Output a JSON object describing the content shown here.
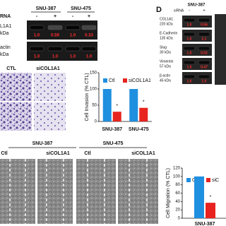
{
  "panel_a": {
    "cell_lines": [
      "SNU-387",
      "SNU-475"
    ],
    "sirna_label": "RNA",
    "sirna_states": [
      "-",
      "+",
      "-",
      "+"
    ],
    "rows": [
      {
        "label": "L1A1",
        "kda": "kDa",
        "ratios": [
          "1.0",
          "0.59",
          "1.0",
          "0.33"
        ]
      },
      {
        "label": "actin",
        "kda": "kDa",
        "ratios": [
          "1.0",
          "1.0",
          "1.0",
          "1.0"
        ]
      }
    ]
  },
  "panel_d": {
    "letter": "D",
    "cell_line": "SNU-387",
    "sirna_label": "siRNA",
    "sirna_states": [
      "-",
      "+"
    ],
    "rows": [
      {
        "label": "COL1A1",
        "kda": "220 kDa",
        "ratios": [
          "1.0",
          "0.56"
        ]
      },
      {
        "label": "E-Cadherin",
        "kda": "135 kDa",
        "ratios": [
          "1.0",
          "2.1"
        ]
      },
      {
        "label": "Slug",
        "kda": "30 kDa",
        "ratios": [
          "1.0",
          "0.52"
        ]
      },
      {
        "label": "Vimentin",
        "kda": "57 kDa",
        "ratios": [
          "1.0",
          "0.47"
        ]
      },
      {
        "label": "β-actin",
        "kda": "45 kDa",
        "ratios": [
          "1.0",
          "1.0"
        ]
      }
    ]
  },
  "invasion_images": {
    "labels": [
      "CTL",
      "siCOL1A1"
    ]
  },
  "migration_images": {
    "groups": [
      {
        "title": "SNU-387",
        "labels": [
          "Ctl",
          "siCOL1A1"
        ]
      },
      {
        "title": "SNU-475",
        "labels": [
          "Ctl",
          "siCOL1A1"
        ]
      }
    ]
  },
  "chart_data": [
    {
      "type": "bar",
      "y_label": "Cell Invasion (% CTL)",
      "categories": [
        "SNU-387",
        "SNU-475"
      ],
      "series": [
        {
          "name": "Ctl",
          "color": "#1f8fe0",
          "values": [
            100,
            100
          ]
        },
        {
          "name": "siCOL1A1",
          "color": "#e8231f",
          "values": [
            30,
            42
          ]
        }
      ],
      "annotations": [
        "*",
        "*"
      ],
      "ylim": [
        0,
        150
      ],
      "yticks": [
        0,
        50,
        100,
        150
      ]
    },
    {
      "type": "bar",
      "y_label": "Cell Migration (% CTL)",
      "categories": [
        "SNU-387"
      ],
      "series": [
        {
          "name": "Ctl",
          "color": "#1f8fe0",
          "values": [
            100
          ]
        },
        {
          "name": "siC",
          "color": "#e8231f",
          "values": [
            37
          ]
        }
      ],
      "annotations": [
        "*"
      ],
      "ylim": [
        0,
        120
      ],
      "yticks": [
        0,
        20,
        40,
        60,
        80,
        100,
        120
      ]
    }
  ]
}
